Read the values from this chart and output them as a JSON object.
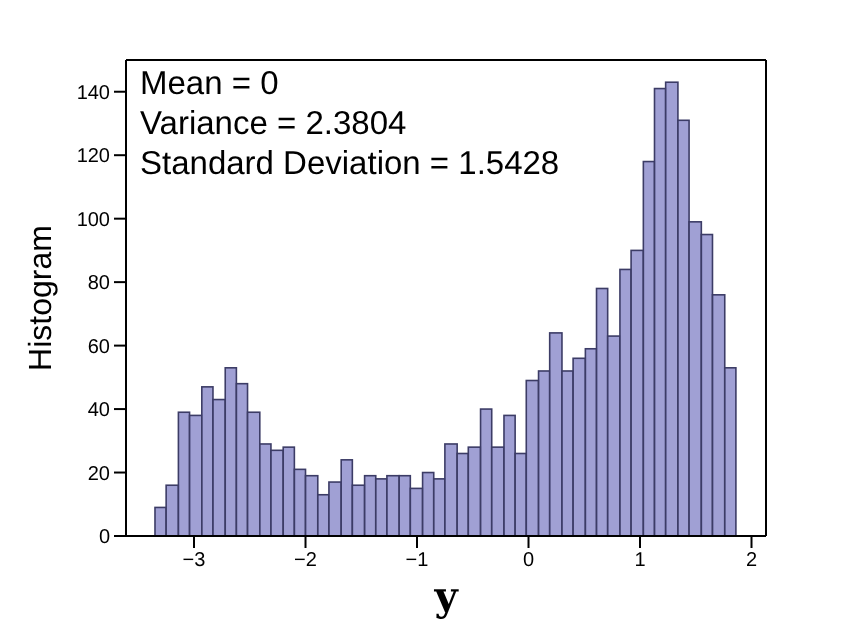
{
  "chart_data": {
    "type": "histogram",
    "xlabel": "y",
    "ylabel": "Histogram",
    "annotations": [
      "Mean = 0",
      "Variance = 2.3804",
      "Standard Deviation = 1.5428"
    ],
    "bins": [
      -3.35,
      -3.25,
      -3.14,
      -3.04,
      -2.93,
      -2.83,
      -2.72,
      -2.62,
      -2.52,
      -2.41,
      -2.31,
      -2.2,
      -2.1,
      -2.0,
      -1.89,
      -1.79,
      -1.68,
      -1.58,
      -1.47,
      -1.37,
      -1.27,
      -1.16,
      -1.06,
      -0.95,
      -0.85,
      -0.75,
      -0.64,
      -0.54,
      -0.43,
      -0.33,
      -0.22,
      -0.12,
      -0.02,
      0.09,
      0.19,
      0.3,
      0.4,
      0.51,
      0.61,
      0.71,
      0.82,
      0.92,
      1.03,
      1.13,
      1.23,
      1.34,
      1.44,
      1.55,
      1.65,
      1.76,
      1.86
    ],
    "values": [
      9,
      16,
      39,
      38,
      47,
      43,
      53,
      48,
      39,
      29,
      27,
      28,
      21,
      19,
      13,
      17,
      24,
      16,
      19,
      18,
      19,
      19,
      15,
      20,
      18,
      29,
      26,
      28,
      40,
      28,
      38,
      26,
      49,
      52,
      64,
      52,
      56,
      59,
      78,
      63,
      84,
      90,
      118,
      141,
      143,
      131,
      99,
      95,
      76,
      53
    ],
    "color": "#8f8fcc",
    "xlim": [
      -3.61,
      2.13
    ],
    "xticks": [
      -3,
      -2,
      -1,
      0,
      1,
      2
    ],
    "ylim": [
      0,
      150
    ],
    "yticks": [
      0,
      20,
      40,
      60,
      80,
      100,
      120,
      140
    ],
    "grid": false
  }
}
